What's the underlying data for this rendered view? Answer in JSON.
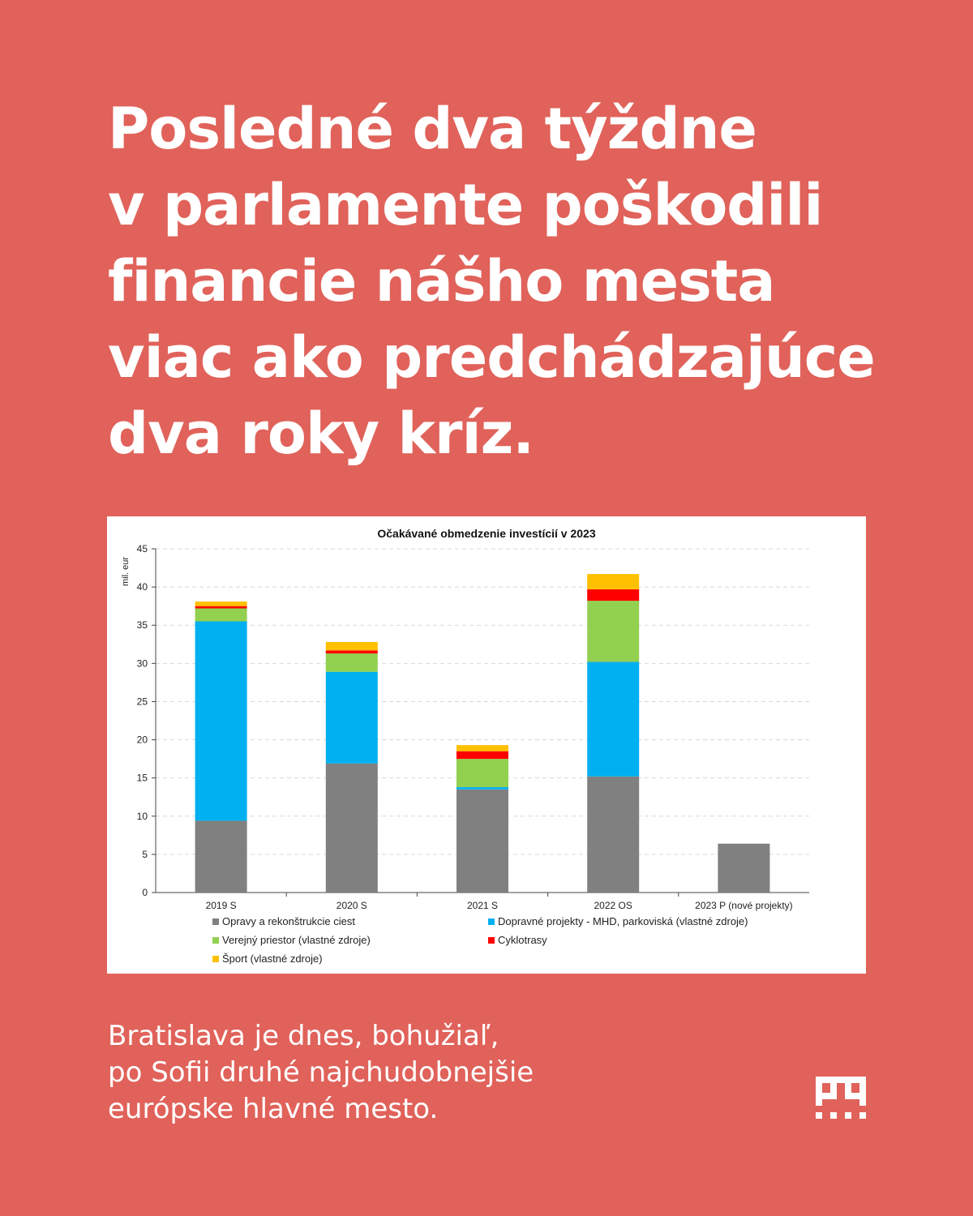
{
  "headline": {
    "lines": [
      "Posledné dva týždne",
      "v parlamente poškodili",
      "financie nášho mesta",
      "viac ako predchádzajúce",
      "dva roky kríz."
    ]
  },
  "footer": {
    "lines": [
      "Bratislava je dnes, bohužiaľ,",
      "po Sofii druhé najchudobnejšie",
      "európske hlavné mesto."
    ]
  },
  "logo": {
    "icon": "city-grid-logo-icon"
  },
  "chart_data": {
    "type": "bar",
    "stacked": true,
    "title": "Očakávané obmedzenie investícií v 2023",
    "ylabel": "mil. eur",
    "xlabel": "",
    "ylim": [
      0,
      45
    ],
    "yticks": [
      0,
      5,
      10,
      15,
      20,
      25,
      30,
      35,
      40,
      45
    ],
    "grid": true,
    "legend_position": "bottom",
    "categories": [
      "2019 S",
      "2020 S",
      "2021 S",
      "2022 OS",
      "2023 P (nové projekty)"
    ],
    "series": [
      {
        "name": "Opravy a rekonštrukcie ciest",
        "color": "#808080",
        "values": [
          9.4,
          16.9,
          13.5,
          15.2,
          6.4
        ]
      },
      {
        "name": "Dopravné projekty - MHD, parkoviská (vlastné zdroje)",
        "color": "#00B0F0",
        "values": [
          26.1,
          12.0,
          0.3,
          15.0,
          0
        ]
      },
      {
        "name": "Verejný priestor (vlastné zdroje)",
        "color": "#92D050",
        "values": [
          1.7,
          2.4,
          3.7,
          8.0,
          0
        ]
      },
      {
        "name": "Cyklotrasy",
        "color": "#FF0000",
        "values": [
          0.3,
          0.4,
          1.0,
          1.5,
          0
        ]
      },
      {
        "name": "Šport (vlastné zdroje)",
        "color": "#FFC000",
        "values": [
          0.6,
          1.1,
          0.8,
          2.0,
          0
        ]
      }
    ]
  }
}
